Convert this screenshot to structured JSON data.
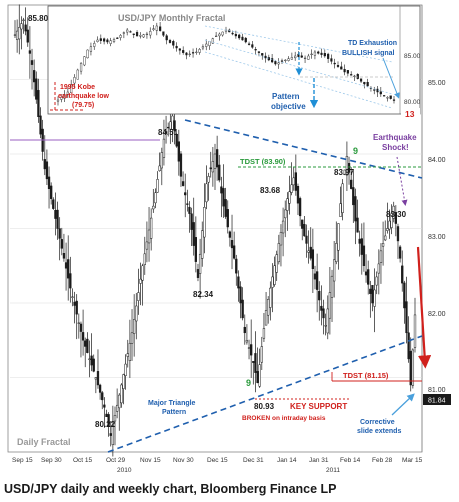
{
  "caption": "USD/JPY daily and weekly chart, Bloomberg Finance LP",
  "colors": {
    "up_candle": "#ffffff",
    "down_candle": "#1a1a1a",
    "trendline": "#1f5fae",
    "label_blue": "#1f5fae",
    "label_red": "#d0201c",
    "label_green": "#2a9a3c",
    "label_purple": "#7a3fa0",
    "grid": "#dddddd"
  },
  "chart_data": [
    {
      "type": "candlestick",
      "title": "",
      "watermark": "Daily Fractal",
      "ylim": [
        80.0,
        86.0
      ],
      "yticks": [
        "85.00",
        "84.00",
        "83.00",
        "82.00",
        "81.00"
      ],
      "xticks": [
        "Sep 15",
        "Sep 30",
        "Oct 15",
        "Oct 29",
        "Nov 15",
        "Nov 30",
        "Dec 15",
        "Dec 31",
        "Jan 14",
        "Jan 31",
        "Feb 14",
        "Feb 28",
        "Mar 15"
      ],
      "year_labels": [
        "2010",
        "2011"
      ],
      "last_price": "81.84",
      "swing_points": [
        {
          "label": "85.80",
          "date": "Sep 15",
          "value": 85.8
        },
        {
          "label": "80.22",
          "date": "Oct 29",
          "value": 80.22
        },
        {
          "label": "84.51",
          "date": "Nov 23",
          "value": 84.51
        },
        {
          "label": "82.34",
          "date": "Dec 10",
          "value": 82.34
        },
        {
          "label": "83.68",
          "date": "Jan 10",
          "value": 83.68
        },
        {
          "label": "83.97",
          "date": "Feb 8",
          "value": 83.97
        },
        {
          "label": "83.30",
          "date": "Mar 5",
          "value": 83.3
        },
        {
          "label": "80.93",
          "date": "Jan 3",
          "value": 80.93
        }
      ],
      "annotations": {
        "tdst_upper": "TDST (83.90)",
        "tdst_upper_value": 83.9,
        "tdst_lower": "TDST (81.15)",
        "tdst_lower_value": 81.15,
        "key_support": "KEY SUPPORT",
        "broken": "BROKEN on intraday basis",
        "triangle_line1": "Major Triangle",
        "triangle_line2": "Pattern",
        "earthquake_line1": "Earthquake",
        "earthquake_line2": "Shock!",
        "corrective_line1": "Corrective",
        "corrective_line2": "slide extends",
        "count_9_a": "9",
        "count_9_b": "9"
      }
    },
    {
      "type": "candlestick",
      "title": "USD/JPY Monthly Fractal",
      "yticks": [
        "85.00",
        "80.00"
      ],
      "annotations": {
        "kobe_line1": "1995 Kobe",
        "kobe_line2": "earthquake low",
        "kobe_line3": "(79.75)",
        "pattern_line1": "Pattern",
        "pattern_line2": "objective",
        "td_line1": "TD Exhaustion",
        "td_line2": "BULLISH signal",
        "count_13": "13"
      }
    }
  ]
}
